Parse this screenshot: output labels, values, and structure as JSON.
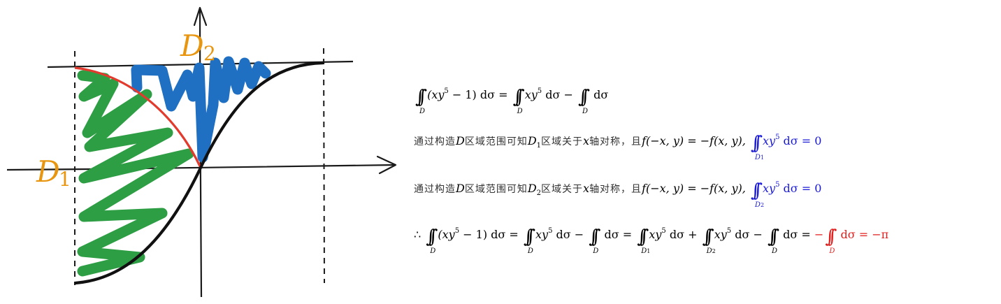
{
  "sketch": {
    "label_d1": "D",
    "label_d1_sub": "1",
    "label_d2": "D",
    "label_d2_sub": "2",
    "colors": {
      "curve": "#000000",
      "circle_arc": "#e23b2e",
      "d1_fill": "#2e9e45",
      "d2_fill": "#1f6fc2",
      "labels": "#e8950f"
    }
  },
  "text": {
    "line1": {
      "lhs_body": "(xy",
      "lhs_sup": "5",
      "lhs_tail": " − 1) dσ =",
      "t1_body": "xy",
      "t1_sup": "5",
      "t1_tail": " dσ −",
      "t2_tail": " dσ",
      "sub": "D"
    },
    "line2": {
      "cn_a": "通过构造",
      "D": "D",
      "cn_b": "区域范围可知",
      "Dn": "D",
      "Dn_sub": "1",
      "cn_c": "区域关于",
      "x": "x",
      "cn_d": "轴对称，且",
      "eq": "f(−x, y) = −f(x, y),",
      "int_sub": "D",
      "int_sub_n": "1",
      "term": "xy",
      "term_sup": "5",
      "term_tail": " dσ = 0"
    },
    "line3": {
      "cn_a": "通过构造",
      "D": "D",
      "cn_b": "区域范围可知",
      "Dn": "D",
      "Dn_sub": "2",
      "cn_c": "区域关于",
      "x": "x",
      "cn_d": "轴对称，且",
      "eq": "f(−x, y) = −f(x, y),",
      "int_sub": "D",
      "int_sub_n": "2",
      "term": "xy",
      "term_sup": "5",
      "term_tail": " dσ = 0"
    },
    "line4": {
      "therefore": "∴",
      "a_body": "(xy",
      "a_sup": "5",
      "a_tail": " − 1) dσ =",
      "b_body": "xy",
      "b_sup": "5",
      "b_tail": " dσ −",
      "c_tail": " dσ =",
      "d_body": "xy",
      "d_sup": "5",
      "d_tail": " dσ +",
      "e_body": "xy",
      "e_sup": "5",
      "e_tail": " dσ −",
      "f_tail": " dσ =",
      "g_pre": "−",
      "g_tail": " dσ = −π",
      "sub_D": "D",
      "sub_D1": "D",
      "sub_D1_n": "1",
      "sub_D2": "D",
      "sub_D2_n": "2"
    }
  }
}
